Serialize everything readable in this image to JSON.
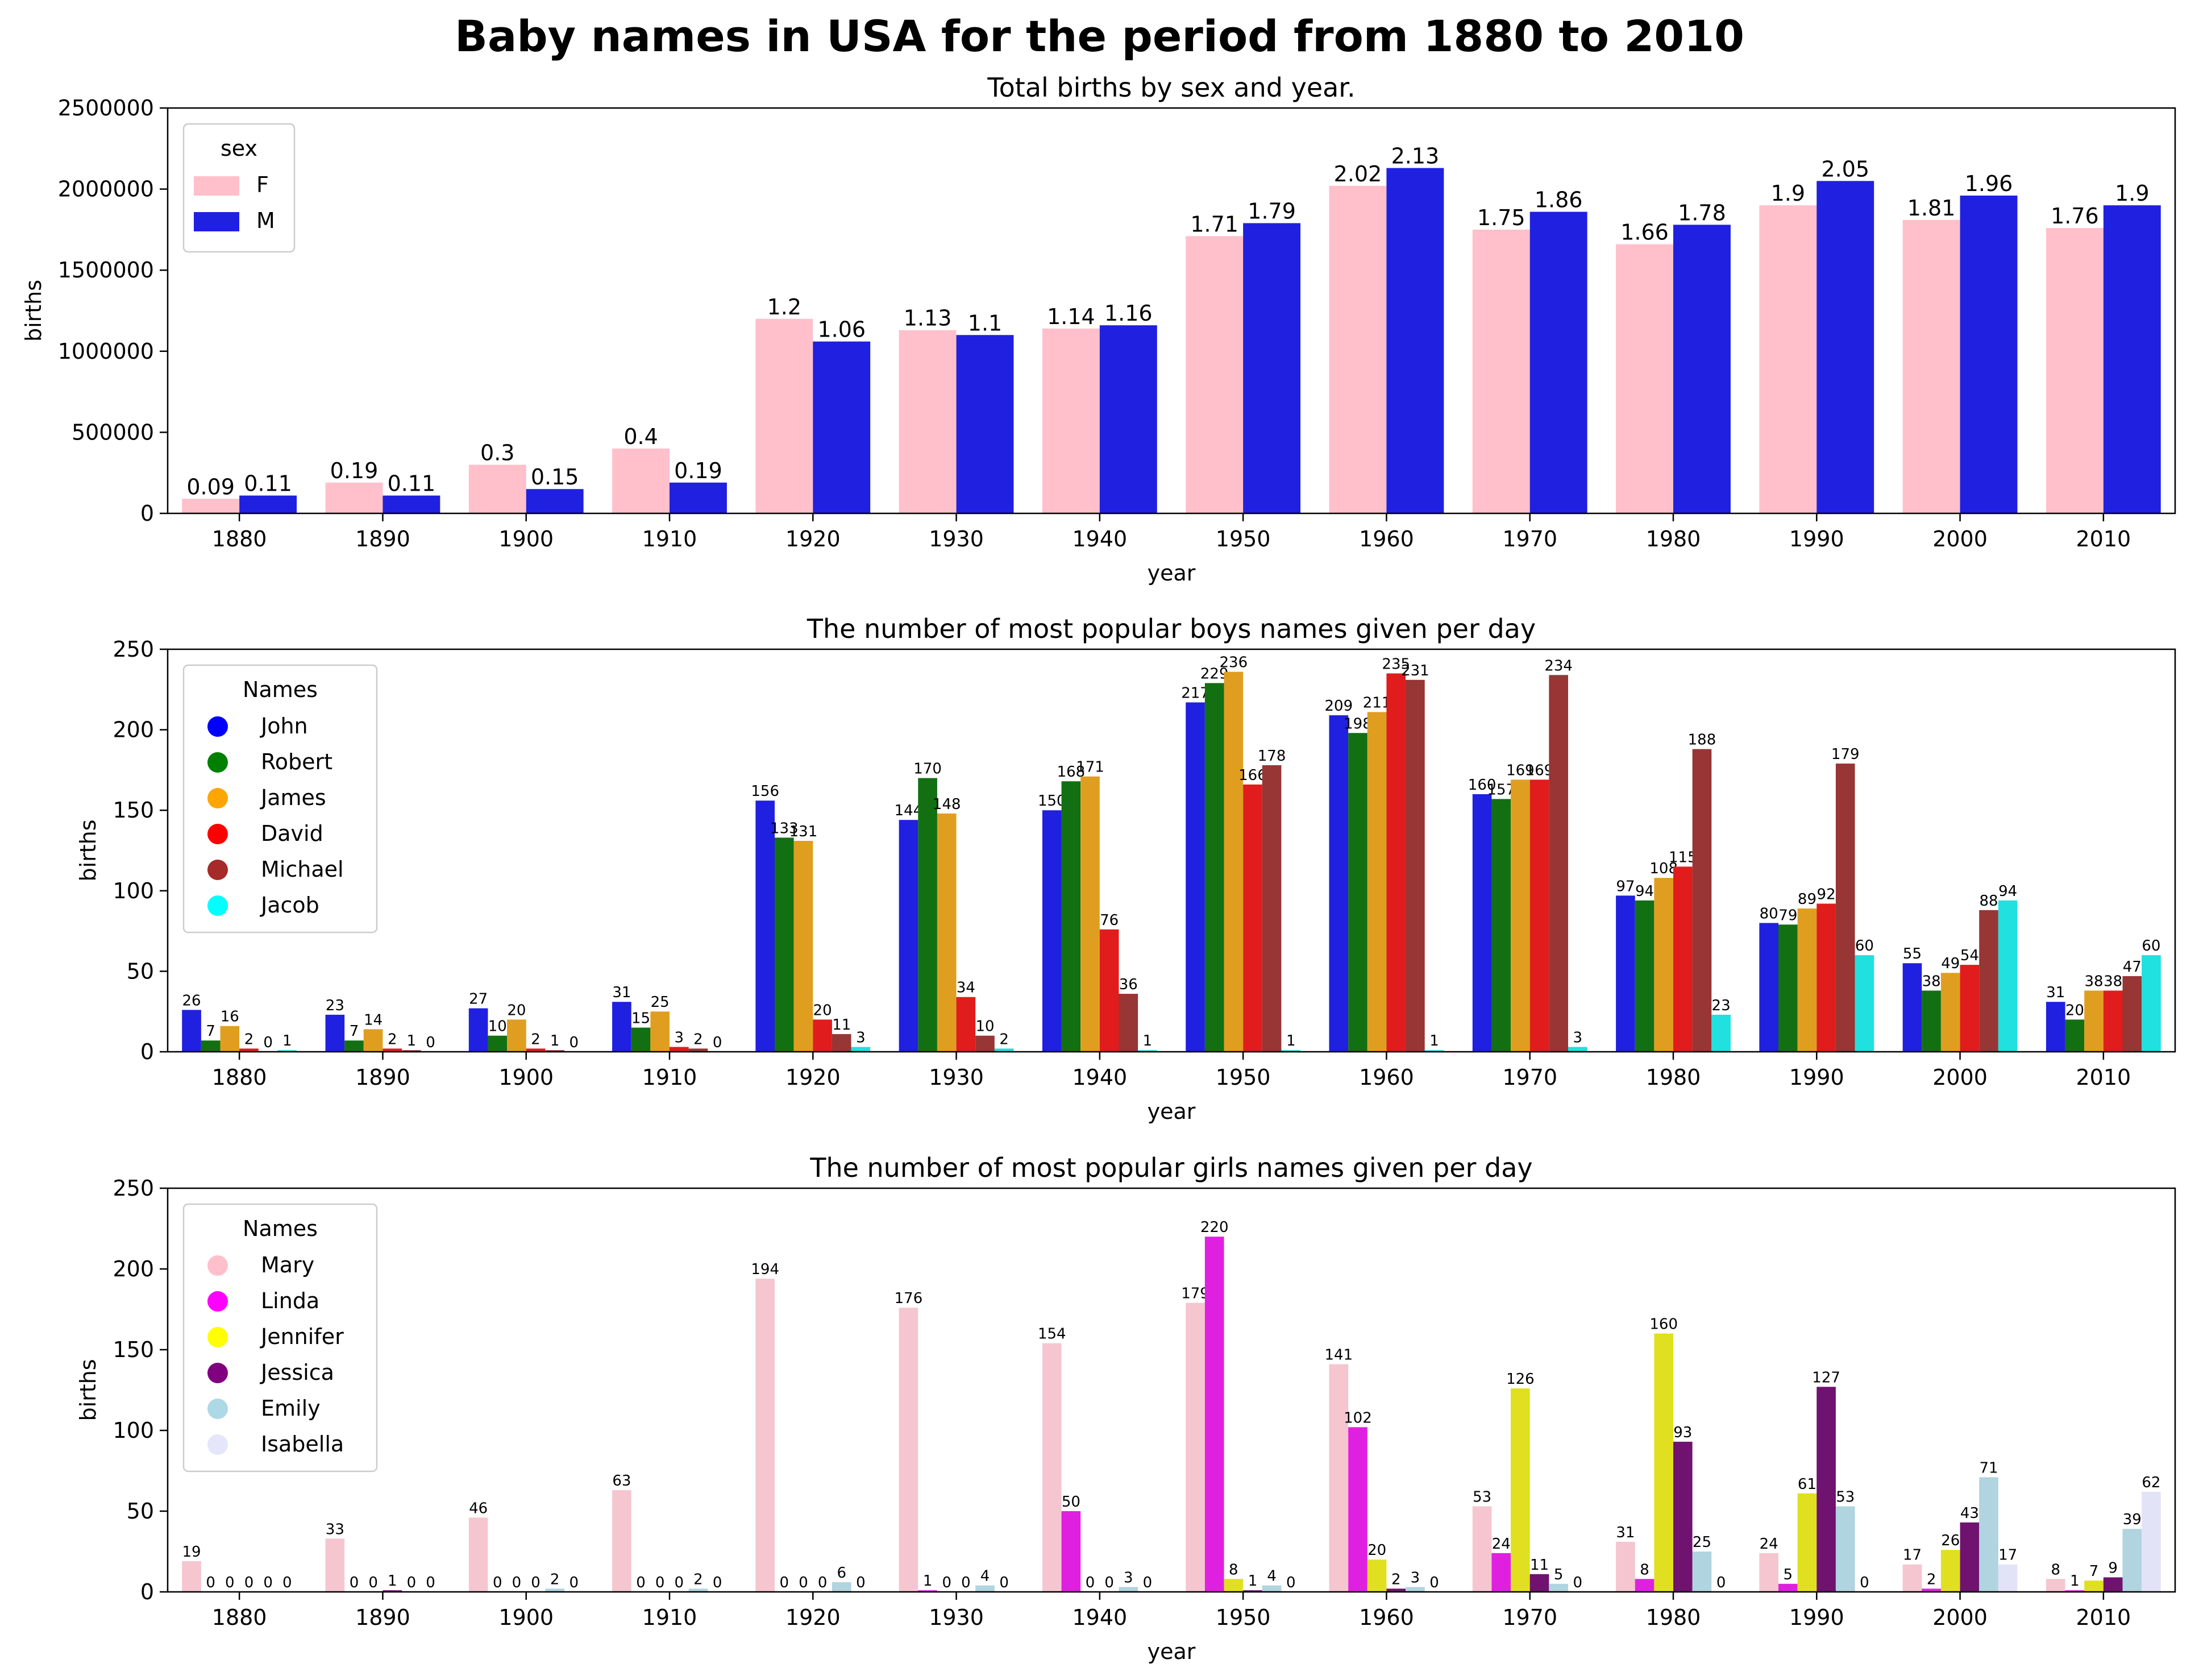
{
  "figure": {
    "title": "Baby names in USA for the period from 1880 to 2010",
    "bar_fill": 0.8
  },
  "chart_data": [
    {
      "type": "bar",
      "title": "Total births by sex and year.",
      "xlabel": "year",
      "ylabel": "births",
      "ylim": [
        0,
        2500000
      ],
      "yticks": [
        0,
        500000,
        1000000,
        1500000,
        2000000,
        2500000
      ],
      "categories": [
        "1880",
        "1890",
        "1900",
        "1910",
        "1920",
        "1930",
        "1940",
        "1950",
        "1960",
        "1970",
        "1980",
        "1990",
        "2000",
        "2010"
      ],
      "legend": {
        "title": "sex",
        "position": "top-left",
        "marker": "rect"
      },
      "label_fontsize": 38,
      "series": [
        {
          "name": "F",
          "color": "#ffc0cb",
          "values": [
            90000,
            190000,
            300000,
            400000,
            1200000,
            1130000,
            1140000,
            1710000,
            2020000,
            1750000,
            1660000,
            1900000,
            1810000,
            1760000
          ],
          "labels": [
            "0.09",
            "0.19",
            "0.3",
            "0.4",
            "1.2",
            "1.13",
            "1.14",
            "1.71",
            "2.02",
            "1.75",
            "1.66",
            "1.9",
            "1.81",
            "1.76"
          ]
        },
        {
          "name": "M",
          "color": "#2020e0",
          "values": [
            110000,
            110000,
            150000,
            190000,
            1060000,
            1100000,
            1160000,
            1790000,
            2130000,
            1860000,
            1780000,
            2050000,
            1960000,
            1900000
          ],
          "labels": [
            "0.11",
            "0.11",
            "0.15",
            "0.19",
            "1.06",
            "1.1",
            "1.16",
            "1.79",
            "2.13",
            "1.86",
            "1.78",
            "2.05",
            "1.96",
            "1.9"
          ]
        }
      ]
    },
    {
      "type": "bar",
      "title": "The number of most popular boys names given per day",
      "xlabel": "year",
      "ylabel": "births",
      "ylim": [
        0,
        250
      ],
      "yticks": [
        0,
        50,
        100,
        150,
        200,
        250
      ],
      "categories": [
        "1880",
        "1890",
        "1900",
        "1910",
        "1920",
        "1930",
        "1940",
        "1950",
        "1960",
        "1970",
        "1980",
        "1990",
        "2000",
        "2010"
      ],
      "legend": {
        "title": "Names",
        "position": "top-left",
        "marker": "circle"
      },
      "label_fontsize": 26,
      "series": [
        {
          "name": "John",
          "color": "#2020e0",
          "legend_color": "#0000ff",
          "values": [
            26,
            23,
            27,
            31,
            156,
            144,
            150,
            217,
            209,
            160,
            97,
            80,
            55,
            31
          ]
        },
        {
          "name": "Robert",
          "color": "#127012",
          "legend_color": "#008000",
          "values": [
            7,
            7,
            10,
            15,
            133,
            170,
            168,
            229,
            198,
            157,
            94,
            79,
            38,
            20
          ]
        },
        {
          "name": "James",
          "color": "#e09e20",
          "legend_color": "#ffa500",
          "values": [
            16,
            14,
            20,
            25,
            131,
            148,
            171,
            236,
            211,
            169,
            108,
            89,
            49,
            38
          ]
        },
        {
          "name": "David",
          "color": "#e01c1c",
          "legend_color": "#ff0000",
          "values": [
            2,
            2,
            2,
            3,
            20,
            34,
            76,
            166,
            235,
            169,
            115,
            92,
            54,
            38
          ]
        },
        {
          "name": "Michael",
          "color": "#983535",
          "legend_color": "#a52a2a",
          "values": [
            0,
            1,
            1,
            2,
            11,
            10,
            36,
            178,
            231,
            234,
            188,
            179,
            88,
            47
          ]
        },
        {
          "name": "Jacob",
          "color": "#20e0e0",
          "legend_color": "#00ffff",
          "values": [
            1,
            0,
            0,
            0,
            3,
            2,
            1,
            1,
            1,
            3,
            23,
            60,
            94,
            60
          ]
        }
      ]
    },
    {
      "type": "bar",
      "title": "The number of most popular girls names given per day",
      "xlabel": "year",
      "ylabel": "births",
      "ylim": [
        0,
        250
      ],
      "yticks": [
        0,
        50,
        100,
        150,
        200,
        250
      ],
      "categories": [
        "1880",
        "1890",
        "1900",
        "1910",
        "1920",
        "1930",
        "1940",
        "1950",
        "1960",
        "1970",
        "1980",
        "1990",
        "2000",
        "2010"
      ],
      "legend": {
        "title": "Names",
        "position": "top-left",
        "marker": "circle"
      },
      "label_fontsize": 26,
      "series": [
        {
          "name": "Mary",
          "color": "#f5c6d0",
          "legend_color": "#ffc0cb",
          "values": [
            19,
            33,
            46,
            63,
            194,
            176,
            154,
            179,
            141,
            53,
            31,
            24,
            17,
            8
          ]
        },
        {
          "name": "Linda",
          "color": "#e020e0",
          "legend_color": "#ff00ff",
          "values": [
            0,
            0,
            0,
            0,
            0,
            1,
            50,
            220,
            102,
            24,
            8,
            5,
            2,
            1
          ]
        },
        {
          "name": "Jennifer",
          "color": "#e0e020",
          "legend_color": "#ffff00",
          "values": [
            0,
            0,
            0,
            0,
            0,
            0,
            0,
            8,
            20,
            126,
            160,
            61,
            26,
            7
          ]
        },
        {
          "name": "Jessica",
          "color": "#701270",
          "legend_color": "#800080",
          "values": [
            0,
            1,
            0,
            0,
            0,
            0,
            0,
            1,
            2,
            11,
            93,
            127,
            43,
            9
          ]
        },
        {
          "name": "Emily",
          "color": "#b0d4e0",
          "legend_color": "#add8e6",
          "values": [
            0,
            0,
            2,
            2,
            6,
            4,
            3,
            4,
            3,
            5,
            25,
            53,
            71,
            39
          ]
        },
        {
          "name": "Isabella",
          "color": "#e3e3f8",
          "legend_color": "#e6e6fa",
          "values": [
            0,
            0,
            0,
            0,
            0,
            0,
            0,
            0,
            0,
            0,
            0,
            0,
            17,
            62
          ]
        }
      ]
    }
  ]
}
